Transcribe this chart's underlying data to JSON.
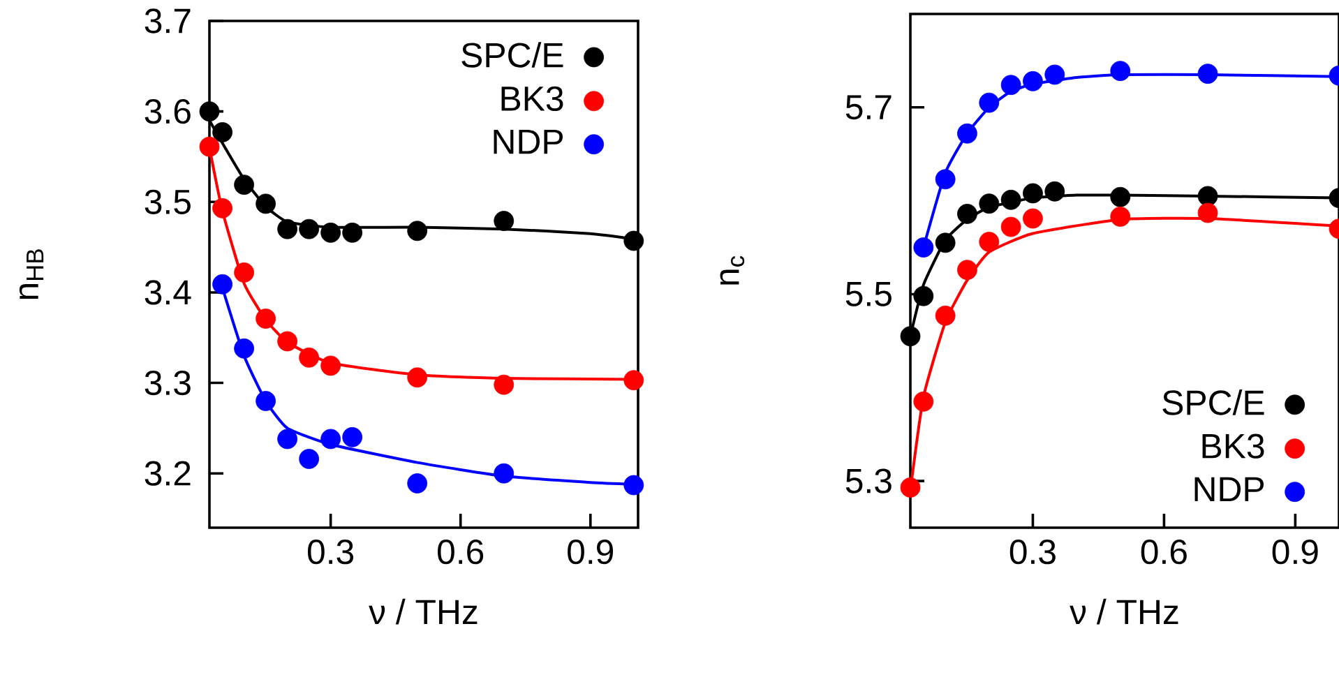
{
  "chart_data": [
    {
      "type": "scatter",
      "xlabel": "ν / THz",
      "ylabel": "n$_{HB}$",
      "xlim": [
        0.02,
        1.01
      ],
      "ylim": [
        3.14,
        3.7
      ],
      "xticks": [
        0.3,
        0.6,
        0.9
      ],
      "yticks": [
        3.2,
        3.3,
        3.4,
        3.5,
        3.6,
        3.7
      ],
      "marker": "circle",
      "legend": "top right",
      "series": [
        {
          "name": "SPC/E",
          "color": "#000000",
          "x": [
            0.02,
            0.05,
            0.1,
            0.15,
            0.2,
            0.25,
            0.3,
            0.35,
            0.5,
            0.7,
            1.0
          ],
          "values": [
            3.6,
            3.577,
            3.519,
            3.498,
            3.47,
            3.47,
            3.466,
            3.466,
            3.468,
            3.479,
            3.457
          ]
        },
        {
          "name": "BK3",
          "color": "#ff0000",
          "x": [
            0.02,
            0.05,
            0.1,
            0.15,
            0.2,
            0.25,
            0.3,
            0.5,
            0.7,
            1.0
          ],
          "values": [
            3.561,
            3.493,
            3.422,
            3.371,
            3.346,
            3.328,
            3.319,
            3.306,
            3.298,
            3.303
          ]
        },
        {
          "name": "NDP",
          "color": "#0000ff",
          "x": [
            0.05,
            0.1,
            0.15,
            0.2,
            0.25,
            0.3,
            0.35,
            0.5,
            0.7,
            1.0
          ],
          "values": [
            3.409,
            3.338,
            3.28,
            3.238,
            3.216,
            3.238,
            3.24,
            3.189,
            3.2,
            3.187
          ]
        },
        {
          "type": "line",
          "marker": "none",
          "color": "#000000",
          "x": [
            0.02,
            0.05,
            0.1,
            0.15,
            0.2,
            0.3,
            0.5,
            0.7,
            0.9,
            1.0
          ],
          "values": [
            3.59,
            3.565,
            3.525,
            3.495,
            3.478,
            3.472,
            3.472,
            3.47,
            3.465,
            3.459
          ]
        },
        {
          "type": "line",
          "marker": "none",
          "color": "#ff0000",
          "x": [
            0.02,
            0.05,
            0.1,
            0.15,
            0.2,
            0.3,
            0.5,
            0.7,
            1.0
          ],
          "values": [
            3.56,
            3.49,
            3.41,
            3.37,
            3.345,
            3.322,
            3.309,
            3.305,
            3.304
          ]
        },
        {
          "type": "line",
          "marker": "none",
          "color": "#0000ff",
          "x": [
            0.05,
            0.1,
            0.15,
            0.2,
            0.3,
            0.5,
            0.7,
            0.9,
            1.0
          ],
          "values": [
            3.405,
            3.33,
            3.28,
            3.25,
            3.232,
            3.212,
            3.197,
            3.19,
            3.188
          ]
        }
      ]
    },
    {
      "type": "scatter",
      "xlabel": "ν / THz",
      "ylabel": "n$_{c}$",
      "xlim": [
        0.02,
        1.0
      ],
      "ylim": [
        5.25,
        5.8
      ],
      "xticks": [
        0.3,
        0.6,
        0.9
      ],
      "yticks": [
        5.3,
        5.5,
        5.7
      ],
      "marker": "circle",
      "legend": "bottom right",
      "series": [
        {
          "name": "SPC/E",
          "color": "#000000",
          "x": [
            0.02,
            0.05,
            0.1,
            0.15,
            0.2,
            0.25,
            0.3,
            0.35,
            0.5,
            0.7,
            1.0
          ],
          "values": [
            5.455,
            5.498,
            5.555,
            5.586,
            5.597,
            5.601,
            5.608,
            5.61,
            5.604,
            5.605,
            5.603
          ]
        },
        {
          "name": "BK3",
          "color": "#ff0000",
          "x": [
            0.02,
            0.05,
            0.1,
            0.15,
            0.2,
            0.25,
            0.3,
            0.5,
            0.7,
            1.0
          ],
          "values": [
            5.293,
            5.385,
            5.477,
            5.526,
            5.556,
            5.572,
            5.581,
            5.583,
            5.587,
            5.57
          ]
        },
        {
          "name": "NDP",
          "color": "#0000ff",
          "x": [
            0.05,
            0.1,
            0.15,
            0.2,
            0.25,
            0.3,
            0.35,
            0.5,
            0.7,
            1.0
          ],
          "values": [
            5.55,
            5.623,
            5.672,
            5.705,
            5.724,
            5.728,
            5.735,
            5.739,
            5.736,
            5.734
          ]
        },
        {
          "type": "line",
          "marker": "none",
          "color": "#000000",
          "x": [
            0.02,
            0.05,
            0.1,
            0.15,
            0.2,
            0.3,
            0.4,
            0.5,
            0.7,
            1.0
          ],
          "values": [
            5.455,
            5.51,
            5.558,
            5.58,
            5.593,
            5.603,
            5.606,
            5.606,
            5.605,
            5.603
          ]
        },
        {
          "type": "line",
          "marker": "none",
          "color": "#ff0000",
          "x": [
            0.02,
            0.05,
            0.1,
            0.15,
            0.2,
            0.3,
            0.5,
            0.7,
            1.0
          ],
          "values": [
            5.29,
            5.39,
            5.47,
            5.515,
            5.545,
            5.565,
            5.58,
            5.581,
            5.573
          ]
        },
        {
          "type": "line",
          "marker": "none",
          "color": "#0000ff",
          "x": [
            0.05,
            0.1,
            0.15,
            0.2,
            0.25,
            0.3,
            0.4,
            0.5,
            0.7,
            1.0
          ],
          "values": [
            5.55,
            5.63,
            5.672,
            5.7,
            5.717,
            5.725,
            5.732,
            5.735,
            5.735,
            5.733
          ]
        }
      ]
    }
  ]
}
